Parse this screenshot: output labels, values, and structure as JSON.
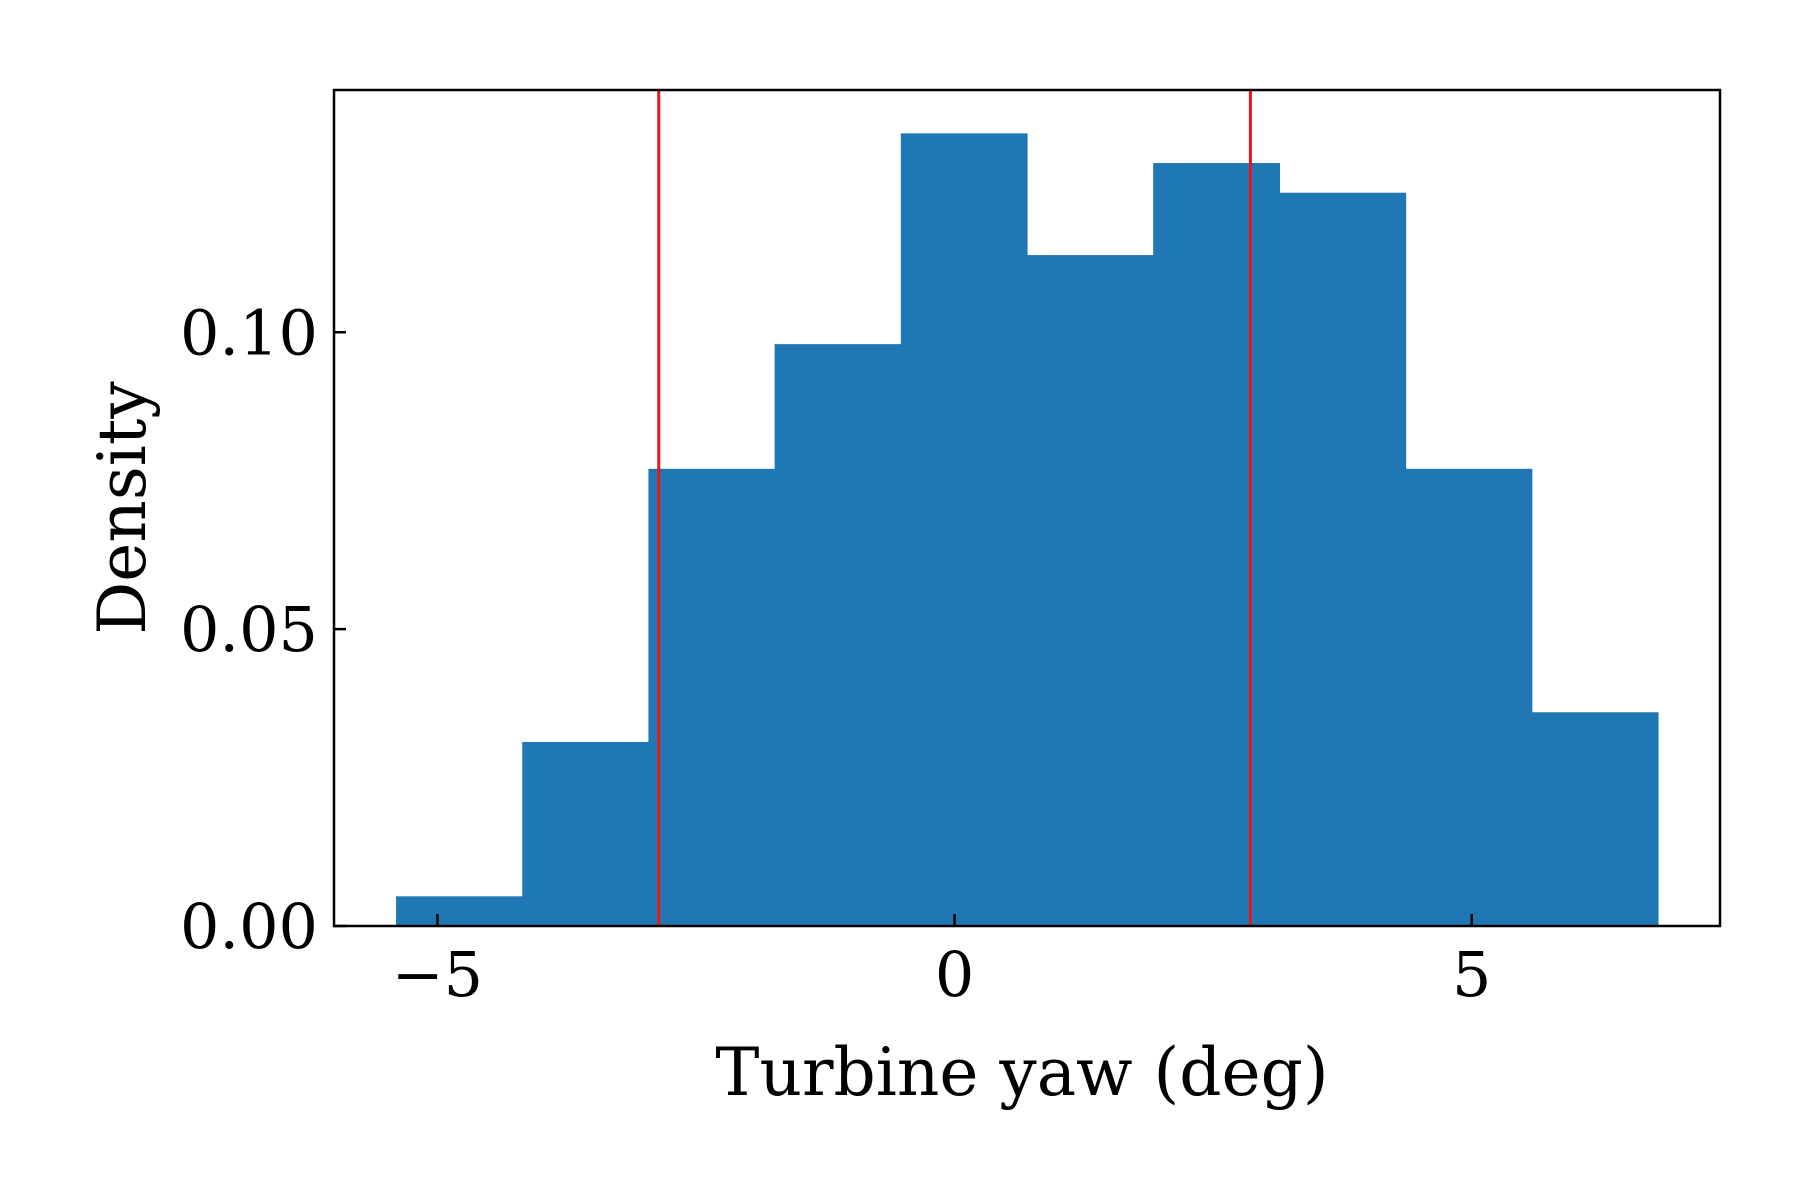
{
  "chart_data": {
    "type": "bar",
    "subtype": "histogram",
    "xlabel": "Turbine yaw (deg)",
    "ylabel": "Density",
    "xlim": [
      -6.0,
      7.4
    ],
    "ylim": [
      0,
      0.1408
    ],
    "xticks": [
      -5,
      0,
      5
    ],
    "xtick_labels": [
      "−5",
      "0",
      "5"
    ],
    "yticks": [
      0.0,
      0.05,
      0.1
    ],
    "ytick_labels": [
      "0.00",
      "0.05",
      "0.10"
    ],
    "grid": false,
    "bar_color": "#1f77b4",
    "bins": [
      {
        "x0": -5.4,
        "x1": -4.18,
        "density": 0.005
      },
      {
        "x0": -4.18,
        "x1": -2.96,
        "density": 0.031
      },
      {
        "x0": -2.96,
        "x1": -1.74,
        "density": 0.077
      },
      {
        "x0": -1.74,
        "x1": -0.52,
        "density": 0.098
      },
      {
        "x0": -0.52,
        "x1": 0.7,
        "density": 0.1335
      },
      {
        "x0": 0.7,
        "x1": 1.92,
        "density": 0.113
      },
      {
        "x0": 1.92,
        "x1": 3.14,
        "density": 0.1285
      },
      {
        "x0": 3.14,
        "x1": 4.36,
        "density": 0.1235
      },
      {
        "x0": 4.36,
        "x1": 5.58,
        "density": 0.077
      },
      {
        "x0": 5.58,
        "x1": 6.8,
        "density": 0.036
      }
    ],
    "reference_lines": [
      {
        "x": -2.86,
        "color": "#e8141c"
      },
      {
        "x": 2.86,
        "color": "#e8141c"
      }
    ]
  }
}
